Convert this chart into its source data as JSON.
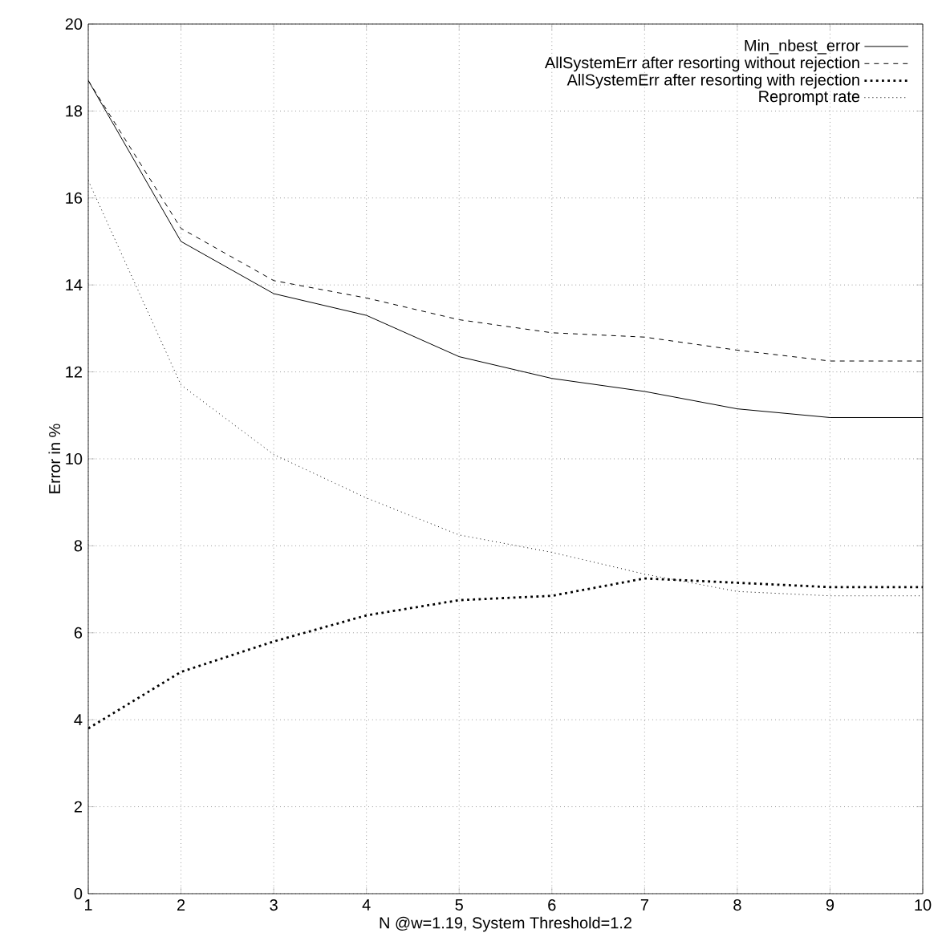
{
  "chart_data": {
    "type": "line",
    "xlabel": "N @w=1.19, System Threshold=1.2",
    "ylabel": "Error in %",
    "x": [
      1,
      2,
      3,
      4,
      5,
      6,
      7,
      8,
      9,
      10
    ],
    "series": [
      {
        "name": "Min_nbest_error",
        "color": "#000000",
        "line_style": "solid",
        "values": [
          18.7,
          15.0,
          13.8,
          13.3,
          12.35,
          11.85,
          11.55,
          11.15,
          10.95,
          10.95
        ]
      },
      {
        "name": "AllSystemErr after resorting without rejection",
        "color": "#000000",
        "line_style": "dashed",
        "values": [
          18.7,
          15.3,
          14.1,
          13.7,
          13.2,
          12.9,
          12.8,
          12.5,
          12.25,
          12.25
        ]
      },
      {
        "name": "AllSystemErr after resorting with rejection",
        "color": "#000000",
        "line_style": "dotted",
        "values": [
          3.8,
          5.1,
          5.8,
          6.4,
          6.75,
          6.85,
          7.25,
          7.15,
          7.05,
          7.05
        ]
      },
      {
        "name": "Reprompt rate",
        "color": "#000000",
        "line_style": "dotted",
        "values": [
          16.4,
          11.7,
          10.1,
          9.1,
          8.25,
          7.85,
          7.35,
          6.95,
          6.85,
          6.85
        ]
      }
    ],
    "xlim": [
      1,
      10
    ],
    "xticks": [
      1,
      2,
      3,
      4,
      5,
      6,
      7,
      8,
      9,
      10
    ],
    "ylim": [
      0,
      20
    ],
    "yticks": [
      0,
      2,
      4,
      6,
      8,
      10,
      12,
      14,
      16,
      18,
      20
    ],
    "grid": true,
    "legend": "top right",
    "marker": "none"
  }
}
